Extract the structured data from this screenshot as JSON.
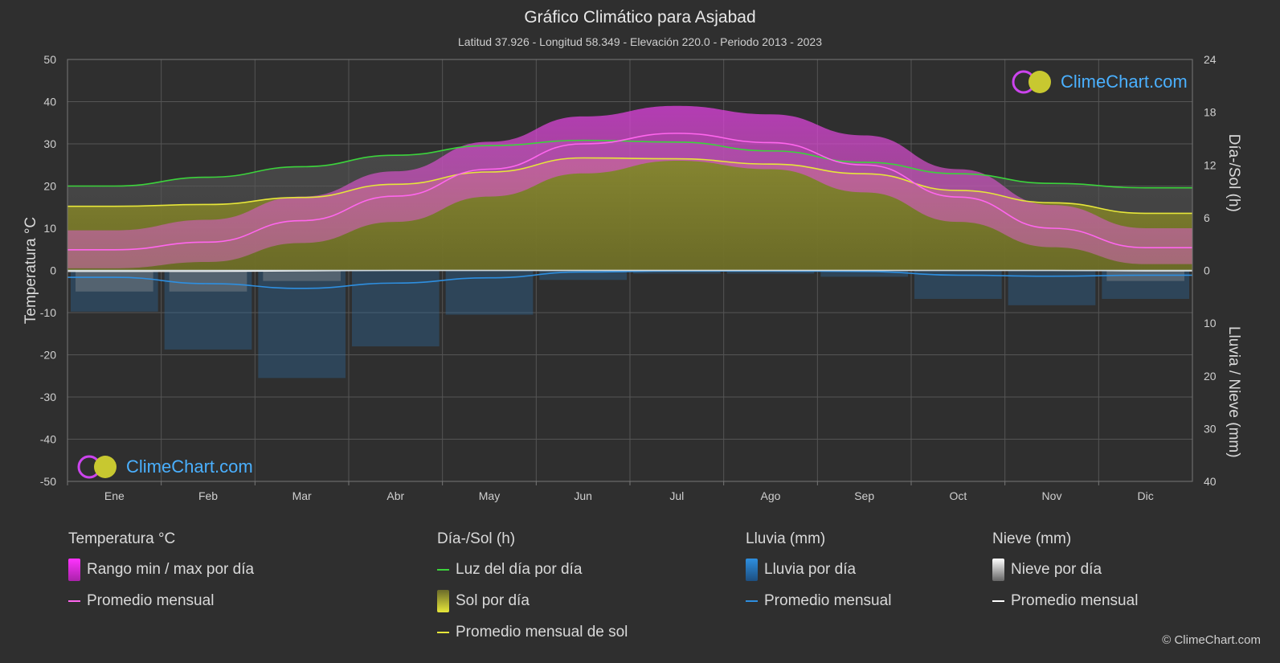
{
  "chart_data": {
    "type": "area",
    "title": "Gráfico Climático para Asjabad",
    "subtitle": "Latitud 37.926 - Longitud 58.349 - Elevación 220.0 - Periodo 2013 - 2023",
    "categories": [
      "Ene",
      "Feb",
      "Mar",
      "Abr",
      "May",
      "Jun",
      "Jul",
      "Ago",
      "Sep",
      "Oct",
      "Nov",
      "Dic"
    ],
    "y_left": {
      "label": "Temperatura °C",
      "range": [
        -50,
        50
      ],
      "ticks": [
        "50",
        "40",
        "30",
        "20",
        "10",
        "0",
        "-10",
        "-20",
        "-30",
        "-40",
        "-50"
      ]
    },
    "y_right_top": {
      "label": "Día-/Sol (h)",
      "range": [
        0,
        24
      ],
      "ticks": [
        "24",
        "18",
        "12",
        "6",
        "0"
      ]
    },
    "y_right_bottom": {
      "label": "Lluvia / Nieve (mm)",
      "range": [
        0,
        40
      ],
      "ticks": [
        "10",
        "20",
        "30",
        "40"
      ]
    },
    "series": [
      {
        "name": "Luz del día por día",
        "unit": "h",
        "color": "#3cd33c",
        "values": [
          9.6,
          10.6,
          11.8,
          13.1,
          14.2,
          14.8,
          14.6,
          13.6,
          12.3,
          11.0,
          9.9,
          9.4
        ]
      },
      {
        "name": "Promedio mensual de sol",
        "unit": "h",
        "color": "#e6e63a",
        "values": [
          7.3,
          7.5,
          8.3,
          9.8,
          11.2,
          12.8,
          12.7,
          12.1,
          11.0,
          9.1,
          7.7,
          6.5
        ]
      },
      {
        "name": "Promedio mensual",
        "group": "Temperatura °C",
        "unit": "°C",
        "color": "#ff66ee",
        "values": [
          4.9,
          6.7,
          11.8,
          17.6,
          24.0,
          30.0,
          32.5,
          30.3,
          25.0,
          17.4,
          10.0,
          5.4
        ]
      },
      {
        "name": "Rango min / max por día",
        "group": "Temperatura °C",
        "unit": "°C",
        "color": "#d63ad6",
        "min": [
          0.5,
          2.0,
          6.5,
          11.5,
          17.5,
          23.0,
          26.0,
          24.0,
          18.5,
          11.5,
          5.5,
          1.5
        ],
        "max": [
          9.5,
          12.0,
          17.5,
          23.5,
          30.5,
          36.5,
          39.0,
          37.0,
          32.0,
          24.0,
          15.5,
          10.0
        ]
      },
      {
        "name": "Promedio mensual",
        "group": "Lluvia (mm)",
        "unit": "mm",
        "color": "#2e8fe0",
        "values": [
          1.3,
          2.5,
          3.4,
          2.4,
          1.4,
          0.3,
          0.1,
          0.1,
          0.2,
          0.9,
          1.1,
          0.9
        ]
      },
      {
        "name": "Promedio mensual",
        "group": "Nieve (mm)",
        "unit": "mm",
        "color": "#ffffff",
        "values": [
          0.2,
          0.2,
          0.1,
          0,
          0,
          0,
          0,
          0,
          0,
          0,
          0,
          0.1
        ]
      }
    ],
    "grid": true,
    "legend_position": "bottom"
  },
  "legend": {
    "temperature": {
      "heading": "Temperatura °C",
      "items": [
        "Rango min / max por día",
        "Promedio mensual"
      ]
    },
    "daylight": {
      "heading": "Día-/Sol (h)",
      "items": [
        "Luz del día por día",
        "Sol por día",
        "Promedio mensual de sol"
      ]
    },
    "rain": {
      "heading": "Lluvia (mm)",
      "items": [
        "Lluvia por día",
        "Promedio mensual"
      ]
    },
    "snow": {
      "heading": "Nieve (mm)",
      "items": [
        "Nieve por día",
        "Promedio mensual"
      ]
    }
  },
  "colors": {
    "background": "#2f2f2f",
    "temp_range": "#d63ad6",
    "temp_avg": "#ff66ee",
    "daylight": "#3cd33c",
    "sunshine_fill": "#9a9a2a",
    "sunshine_avg": "#e6e63a",
    "rain": "#2e8fe0",
    "snow": "#ffffff",
    "logo_text": "#4ab0ff"
  },
  "logo": {
    "text": "ClimeChart.com"
  },
  "copyright": "© ClimeChart.com"
}
